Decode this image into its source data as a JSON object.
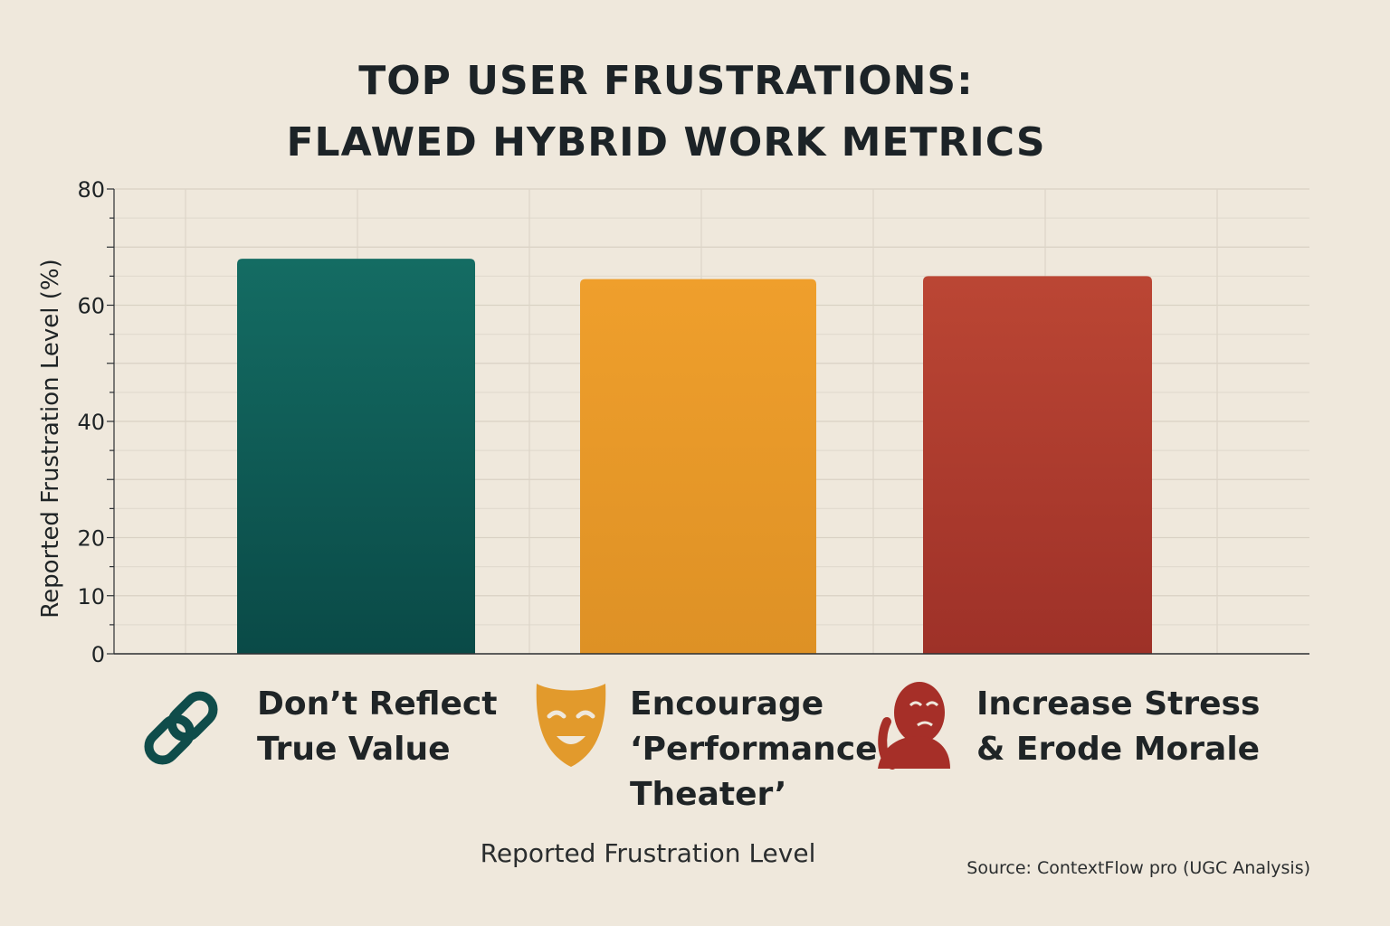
{
  "chart_data": {
    "type": "bar",
    "title": [
      "TOP USER FRUSTRATIONS:",
      "FLAWED HYBRID WORK METRICS"
    ],
    "categories": [
      [
        "Don’t Reflect",
        "True Value"
      ],
      [
        "Encourage",
        "‘Performance",
        "Theater’"
      ],
      [
        "Increase Stress",
        "& Erode Morale"
      ]
    ],
    "values": [
      68,
      64.5,
      65
    ],
    "colors": [
      "#105e58",
      "#ea9b27",
      "#b5402f"
    ],
    "icons": [
      "chain-link-icon",
      "theater-mask-icon",
      "stressed-person-icon"
    ],
    "ylabel": "Reported Frustration Level  (%)",
    "xlabel": "Reported Frustration Level",
    "ylim": [
      0,
      80
    ],
    "yticks": [
      "0",
      "10",
      "20",
      "40",
      "60",
      "80"
    ],
    "grid": true,
    "source": "Source: ContextFlow pro (UGC Analysis)"
  }
}
